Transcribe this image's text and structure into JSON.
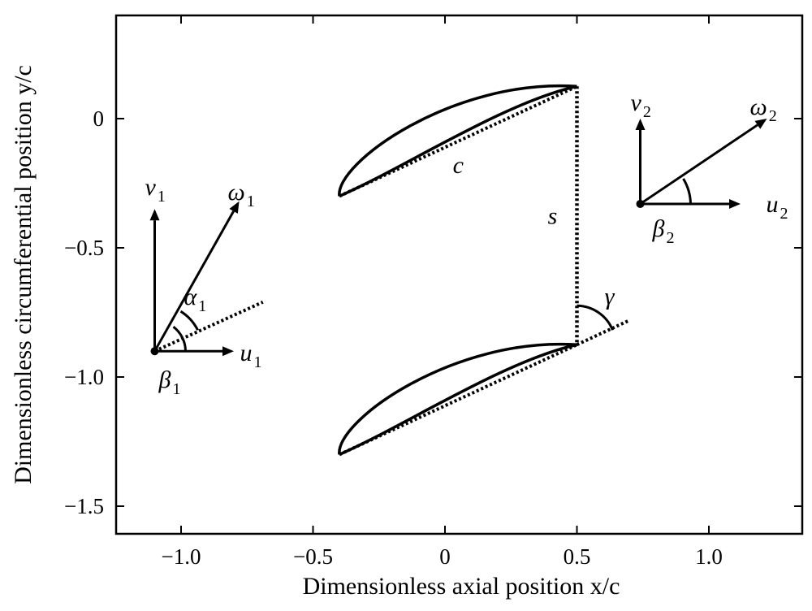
{
  "chart_data": {
    "type": "diagram",
    "title": "",
    "xlabel": "Dimensionless axial position x/c",
    "ylabel": "Dimensionless circumferential position y/c",
    "xlim": [
      -1.3,
      1.4
    ],
    "ylim": [
      -1.6,
      0.42
    ],
    "x_ticks": [
      -1.0,
      -0.5,
      0,
      0.5,
      1.0
    ],
    "x_tick_labels": [
      "−1.0",
      "−0.5",
      "0",
      "0.5",
      "1.0"
    ],
    "y_ticks": [
      0,
      -0.5,
      -1.0,
      -1.5
    ],
    "y_tick_labels": [
      "0",
      "−0.5",
      "−1.0",
      "−1.5"
    ],
    "blades": [
      {
        "name": "upper",
        "leading_edge": [
          -0.4,
          -0.3
        ],
        "trailing_edge": [
          0.5,
          0.125
        ]
      },
      {
        "name": "lower",
        "leading_edge": [
          -0.4,
          -1.3
        ],
        "trailing_edge": [
          0.5,
          -0.875
        ]
      }
    ],
    "pitch_line": {
      "label": "s",
      "x": 0.5,
      "y_from": 0.125,
      "y_to": -0.875
    },
    "chord_label": {
      "text": "c",
      "x": 0.05,
      "y": -0.18
    },
    "inlet_triangle": {
      "origin": [
        -1.1,
        -0.9
      ],
      "u_end": [
        -0.8,
        -0.9
      ],
      "v_end": [
        -1.1,
        -0.35
      ],
      "w_end": [
        -0.78,
        -0.32
      ],
      "stagger_end": [
        -0.69,
        -0.71
      ],
      "labels": {
        "u": "u",
        "u_sub": "1",
        "v": "v",
        "v_sub": "1",
        "w": "ω",
        "w_sub": "1",
        "alpha": "α",
        "alpha_sub": "1",
        "beta": "β",
        "beta_sub": "1"
      }
    },
    "outlet_triangle": {
      "origin": [
        0.74,
        -0.33
      ],
      "u_end": [
        1.12,
        -0.33
      ],
      "v_end": [
        0.74,
        -0.0
      ],
      "w_end": [
        1.22,
        0.0
      ],
      "labels": {
        "u": "u",
        "u_sub": "2",
        "v": "v",
        "v_sub": "2",
        "w": "ω",
        "w_sub": "2",
        "beta": "β",
        "beta_sub": "2"
      }
    },
    "stagger_angle": {
      "label": "γ",
      "origin": [
        0.5,
        -0.875
      ],
      "end": [
        0.7,
        -0.78
      ]
    }
  }
}
